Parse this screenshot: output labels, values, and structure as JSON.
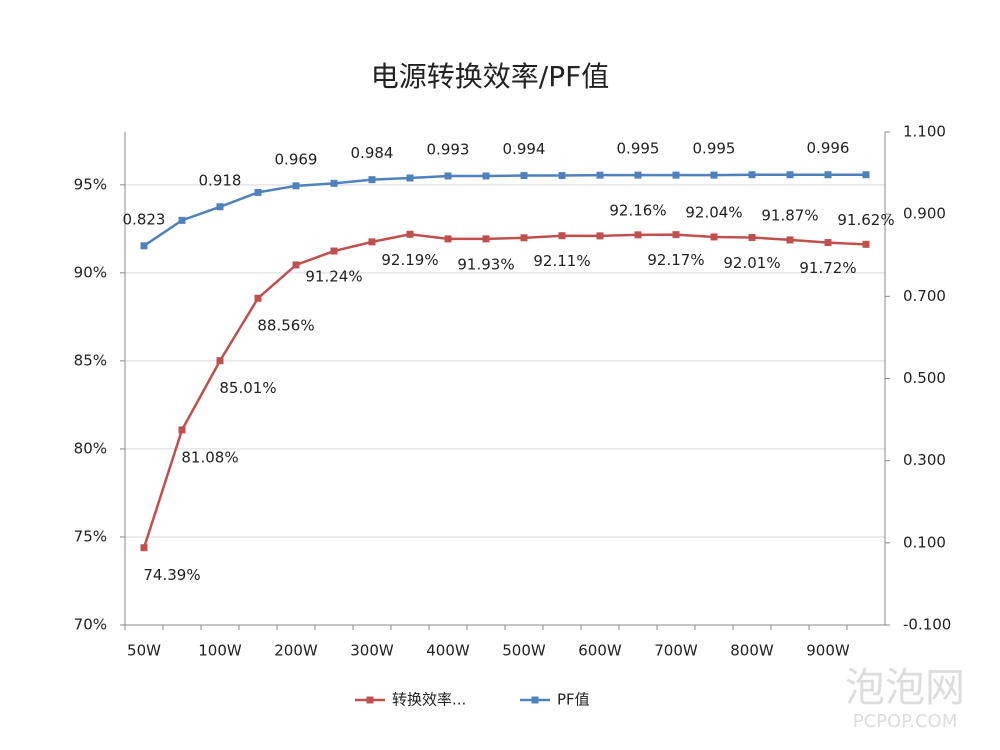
{
  "chart_data": {
    "type": "line",
    "title": "电源转换效率/PF值",
    "categories": [
      "50W",
      null,
      "100W",
      null,
      "200W",
      null,
      "300W",
      null,
      "400W",
      null,
      "500W",
      null,
      "600W",
      null,
      "700W",
      null,
      "800W",
      null,
      "900W",
      null
    ],
    "series": [
      {
        "name": "转换效率...",
        "color": "#c0504d",
        "values": [
          74.39,
          81.08,
          85.01,
          88.56,
          90.45,
          91.24,
          91.76,
          92.19,
          91.93,
          91.93,
          91.99,
          92.11,
          92.1,
          92.16,
          92.17,
          92.04,
          92.01,
          91.87,
          91.72,
          91.62
        ],
        "value_labels": [
          "74.39%",
          "81.08%",
          "85.01%",
          "88.56%",
          null,
          "91.24%",
          null,
          "92.19%",
          null,
          "91.93%",
          null,
          "92.11%",
          null,
          "92.16%",
          "92.17%",
          "92.04%",
          "92.01%",
          "91.87%",
          "91.72%",
          "91.62%"
        ]
      },
      {
        "name": "PF值",
        "color": "#4f81bd",
        "axis": "y2",
        "values": [
          0.823,
          0.885,
          0.918,
          0.953,
          0.969,
          0.975,
          0.984,
          0.988,
          0.993,
          0.993,
          0.994,
          0.994,
          0.995,
          0.995,
          0.995,
          0.995,
          0.996,
          0.996,
          0.996,
          0.996
        ],
        "value_labels": [
          "0.823",
          null,
          "0.918",
          null,
          "0.969",
          null,
          "0.984",
          null,
          "0.993",
          null,
          "0.994",
          null,
          null,
          "0.995",
          null,
          "0.995",
          null,
          null,
          "0.996",
          null
        ]
      }
    ],
    "ylim": [
      70,
      98
    ],
    "yticks": [
      {
        "value": 70,
        "label": "70%"
      },
      {
        "value": 75,
        "label": "75%"
      },
      {
        "value": 80,
        "label": "80%"
      },
      {
        "value": 85,
        "label": "85%"
      },
      {
        "value": 90,
        "label": "90%"
      },
      {
        "value": 95,
        "label": "95%"
      }
    ],
    "y2lim": [
      -0.1,
      1.1
    ],
    "y2ticks": [
      {
        "value": -0.1,
        "label": "-0.100"
      },
      {
        "value": 0.1,
        "label": "0.100"
      },
      {
        "value": 0.3,
        "label": "0.300"
      },
      {
        "value": 0.5,
        "label": "0.500"
      },
      {
        "value": 0.7,
        "label": "0.700"
      },
      {
        "value": 0.9,
        "label": "0.900"
      },
      {
        "value": 1.1,
        "label": "1.100"
      }
    ],
    "grid": true,
    "legend": "bottom",
    "watermark": "泡泡网",
    "watermark_sub": "PCPOP.COM"
  }
}
